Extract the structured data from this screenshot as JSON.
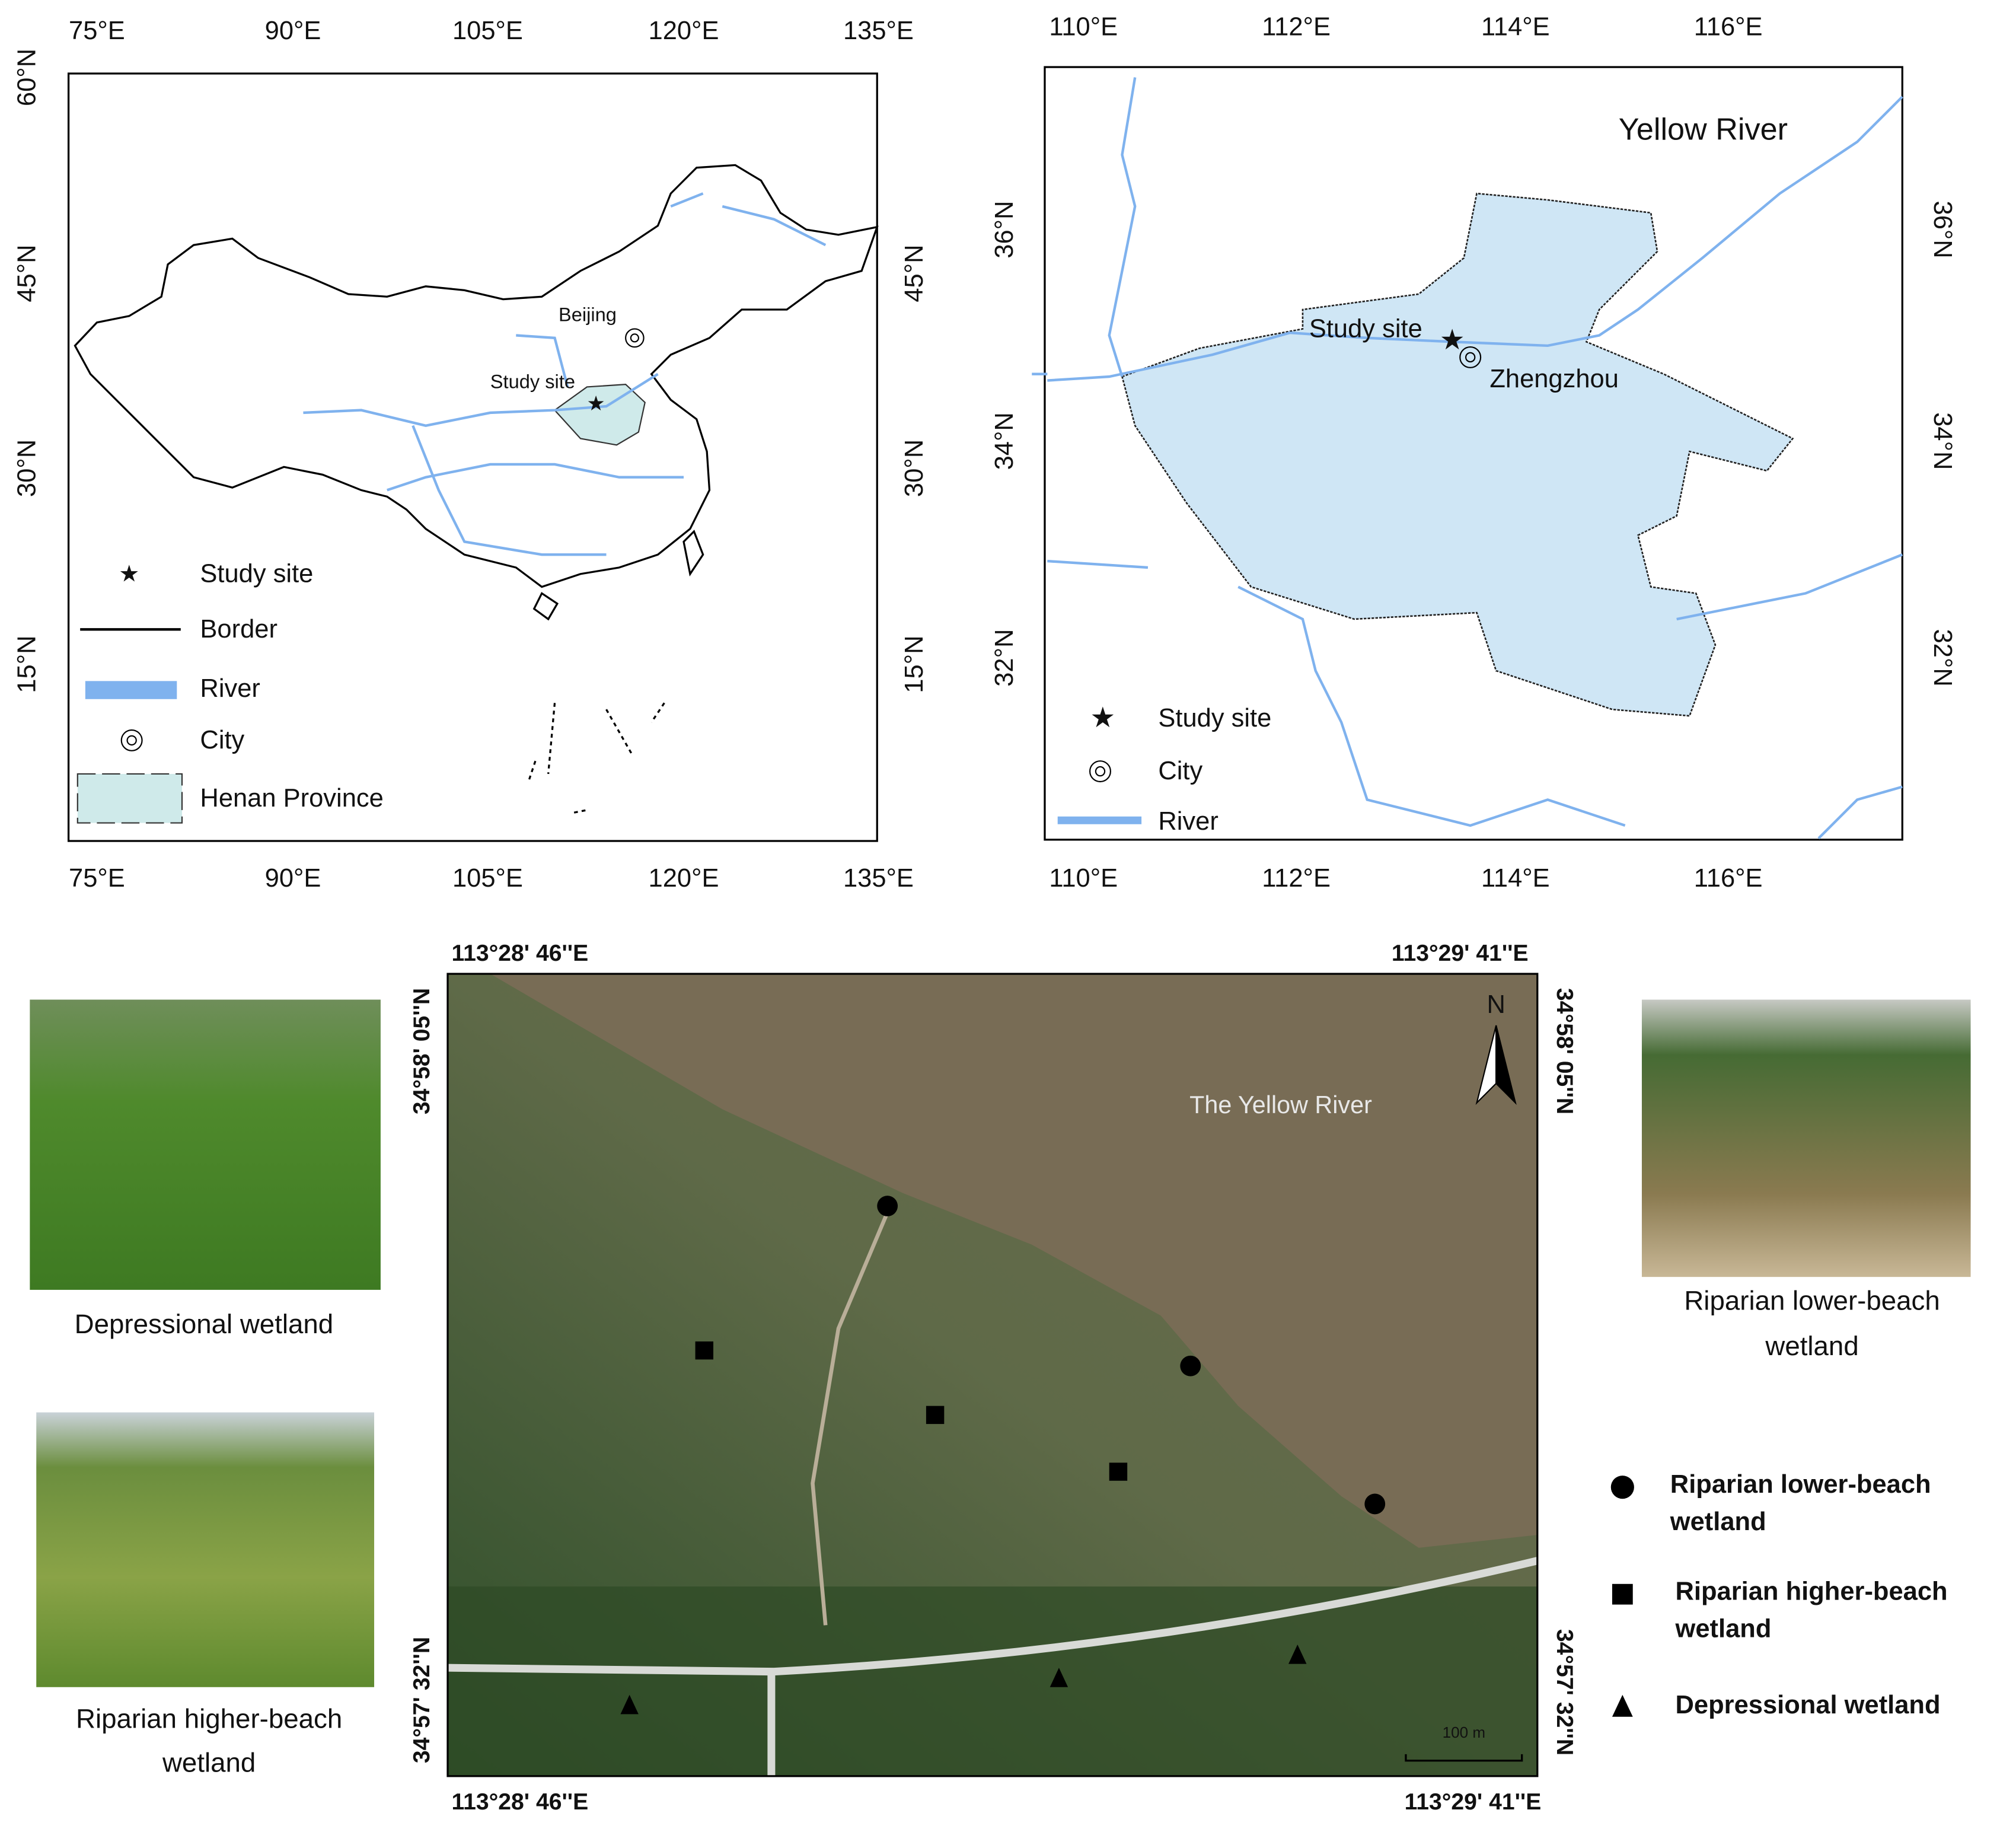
{
  "china_map": {
    "lon_ticks": [
      "75°E",
      "90°E",
      "105°E",
      "120°E",
      "135°E"
    ],
    "lat_ticks": [
      "60°N",
      "45°N",
      "30°N",
      "15°N"
    ],
    "labels": {
      "beijing": "Beijing",
      "study_site": "Study site"
    },
    "legend": [
      "Study site",
      "Border",
      "River",
      "City",
      "Henan Province"
    ]
  },
  "henan_map": {
    "lon_ticks": [
      "110°E",
      "112°E",
      "114°E",
      "116°E"
    ],
    "lat_ticks": [
      "36°N",
      "34°N",
      "32°N"
    ],
    "labels": {
      "river": "Yellow River",
      "study_site": "Study site",
      "city": "Zhengzhou"
    },
    "legend": [
      "Study site",
      "City",
      "River"
    ]
  },
  "site_map": {
    "lon_labels": [
      "113°28' 46''E",
      "113°29' 41''E"
    ],
    "lat_labels": [
      "34°58' 05''N",
      "34°57' 32''N"
    ],
    "river_label": "The Yellow River",
    "north": "N",
    "scale": "100 m"
  },
  "photos": [
    {
      "caption": [
        "Depressional wetland"
      ]
    },
    {
      "caption": [
        "Riparian higher-beach",
        "wetland"
      ]
    },
    {
      "caption": [
        "Riparian lower-beach",
        "wetland"
      ]
    }
  ],
  "legend": [
    [
      "Riparian lower-beach",
      "wetland"
    ],
    [
      "Riparian higher-beach",
      "wetland"
    ],
    [
      "Depressional wetland"
    ]
  ]
}
